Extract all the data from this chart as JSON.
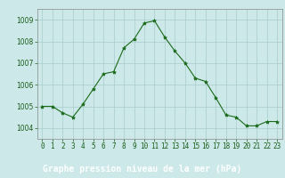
{
  "hours": [
    0,
    1,
    2,
    3,
    4,
    5,
    6,
    7,
    8,
    9,
    10,
    11,
    12,
    13,
    14,
    15,
    16,
    17,
    18,
    19,
    20,
    21,
    22,
    23
  ],
  "pressure": [
    1005.0,
    1005.0,
    1004.7,
    1004.5,
    1005.1,
    1005.8,
    1006.5,
    1006.6,
    1007.7,
    1008.1,
    1008.85,
    1008.95,
    1008.2,
    1007.55,
    1007.0,
    1006.3,
    1006.15,
    1005.4,
    1004.6,
    1004.5,
    1004.1,
    1004.1,
    1004.3,
    1004.3
  ],
  "line_color": "#1a6b1a",
  "marker": "*",
  "marker_size": 3,
  "bg_color": "#cce8e8",
  "plot_bg_color": "#cce8e8",
  "grid_color": "#a8cccc",
  "bottom_bar_color": "#2a6b2a",
  "tick_label_color": "#1a5c1a",
  "xlabel": "Graphe pression niveau de la mer (hPa)",
  "xlabel_color": "#ffffff",
  "ylim": [
    1003.5,
    1009.5
  ],
  "xlim": [
    -0.5,
    23.5
  ],
  "yticks": [
    1004,
    1005,
    1006,
    1007,
    1008,
    1009
  ],
  "xticks": [
    0,
    1,
    2,
    3,
    4,
    5,
    6,
    7,
    8,
    9,
    10,
    11,
    12,
    13,
    14,
    15,
    16,
    17,
    18,
    19,
    20,
    21,
    22,
    23
  ],
  "tick_label_size": 5.5,
  "xlabel_fontsize": 7,
  "ytick_label_size": 5.5
}
